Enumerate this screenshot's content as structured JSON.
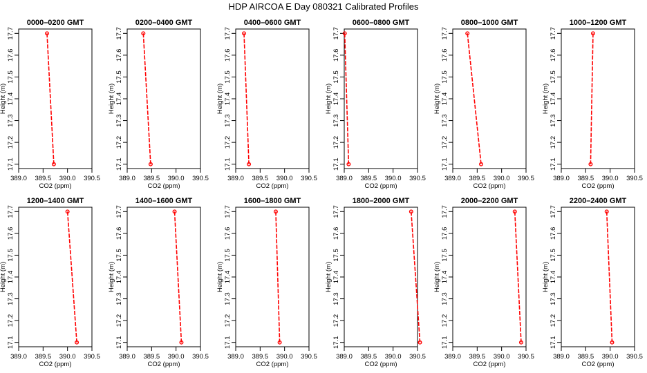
{
  "title": "HDP  AIRCOA E  Day 080321  Calibrated Profiles",
  "colors": {
    "series": "#ff0000",
    "axes": "#000000",
    "background": "#ffffff"
  },
  "chart_data": [
    {
      "type": "line",
      "title": "0000–0200 GMT",
      "xlabel": "CO2 (ppm)",
      "ylabel": "Height (m)",
      "xlim": [
        389.0,
        390.5
      ],
      "ylim": [
        17.08,
        17.72
      ],
      "xticks": [
        "389.0",
        "389.5",
        "390.0",
        "390.5"
      ],
      "yticks": [
        "17.1",
        "17.2",
        "17.3",
        "17.4",
        "17.5",
        "17.6",
        "17.7"
      ],
      "x": [
        389.58,
        389.72
      ],
      "y": [
        17.7,
        17.1
      ]
    },
    {
      "type": "line",
      "title": "0200–0400 GMT",
      "xlabel": "CO2 (ppm)",
      "ylabel": "Height (m)",
      "xlim": [
        389.0,
        390.5
      ],
      "ylim": [
        17.08,
        17.72
      ],
      "xticks": [
        "389.0",
        "389.5",
        "390.0",
        "390.5"
      ],
      "yticks": [
        "17.1",
        "17.2",
        "17.3",
        "17.4",
        "17.5",
        "17.6",
        "17.7"
      ],
      "x": [
        389.33,
        389.48
      ],
      "y": [
        17.7,
        17.1
      ]
    },
    {
      "type": "line",
      "title": "0400–0600 GMT",
      "xlabel": "CO2 (ppm)",
      "ylabel": "Height (m)",
      "xlim": [
        389.0,
        390.5
      ],
      "ylim": [
        17.08,
        17.72
      ],
      "xticks": [
        "389.0",
        "389.5",
        "390.0",
        "390.5"
      ],
      "yticks": [
        "17.1",
        "17.2",
        "17.3",
        "17.4",
        "17.5",
        "17.6",
        "17.7"
      ],
      "x": [
        389.17,
        389.27
      ],
      "y": [
        17.7,
        17.1
      ]
    },
    {
      "type": "line",
      "title": "0600–0800 GMT",
      "xlabel": "CO2 (ppm)",
      "ylabel": "Height (m)",
      "xlim": [
        389.0,
        390.5
      ],
      "ylim": [
        17.08,
        17.72
      ],
      "xticks": [
        "389.0",
        "389.5",
        "390.0",
        "390.5"
      ],
      "yticks": [
        "17.1",
        "17.2",
        "17.3",
        "17.4",
        "17.5",
        "17.6",
        "17.7"
      ],
      "x": [
        389.01,
        389.09
      ],
      "y": [
        17.7,
        17.1
      ]
    },
    {
      "type": "line",
      "title": "0800–1000 GMT",
      "xlabel": "CO2 (ppm)",
      "ylabel": "Height (m)",
      "xlim": [
        389.0,
        390.5
      ],
      "ylim": [
        17.08,
        17.72
      ],
      "xticks": [
        "389.0",
        "389.5",
        "390.0",
        "390.5"
      ],
      "yticks": [
        "17.1",
        "17.2",
        "17.3",
        "17.4",
        "17.5",
        "17.6",
        "17.7"
      ],
      "x": [
        389.3,
        389.58
      ],
      "y": [
        17.7,
        17.1
      ]
    },
    {
      "type": "line",
      "title": "1000–1200 GMT",
      "xlabel": "CO2 (ppm)",
      "ylabel": "Height (m)",
      "xlim": [
        389.0,
        390.5
      ],
      "ylim": [
        17.08,
        17.72
      ],
      "xticks": [
        "389.0",
        "389.5",
        "390.0",
        "390.5"
      ],
      "yticks": [
        "17.1",
        "17.2",
        "17.3",
        "17.4",
        "17.5",
        "17.6",
        "17.7"
      ],
      "x": [
        389.65,
        389.6
      ],
      "y": [
        17.7,
        17.1
      ]
    },
    {
      "type": "line",
      "title": "1200–1400 GMT",
      "xlabel": "CO2 (ppm)",
      "ylabel": "Height (m)",
      "xlim": [
        389.0,
        390.5
      ],
      "ylim": [
        17.08,
        17.72
      ],
      "xticks": [
        "389.0",
        "389.5",
        "390.0",
        "390.5"
      ],
      "yticks": [
        "17.1",
        "17.2",
        "17.3",
        "17.4",
        "17.5",
        "17.6",
        "17.7"
      ],
      "x": [
        390.0,
        390.19
      ],
      "y": [
        17.7,
        17.1
      ]
    },
    {
      "type": "line",
      "title": "1400–1600 GMT",
      "xlabel": "CO2 (ppm)",
      "ylabel": "Height (m)",
      "xlim": [
        389.0,
        390.5
      ],
      "ylim": [
        17.08,
        17.72
      ],
      "xticks": [
        "389.0",
        "389.5",
        "390.0",
        "390.5"
      ],
      "yticks": [
        "17.1",
        "17.2",
        "17.3",
        "17.4",
        "17.5",
        "17.6",
        "17.7"
      ],
      "x": [
        389.97,
        390.11
      ],
      "y": [
        17.7,
        17.1
      ]
    },
    {
      "type": "line",
      "title": "1600–1800 GMT",
      "xlabel": "CO2 (ppm)",
      "ylabel": "Height (m)",
      "xlim": [
        389.0,
        390.5
      ],
      "ylim": [
        17.08,
        17.72
      ],
      "xticks": [
        "389.0",
        "389.5",
        "390.0",
        "390.5"
      ],
      "yticks": [
        "17.1",
        "17.2",
        "17.3",
        "17.4",
        "17.5",
        "17.6",
        "17.7"
      ],
      "x": [
        389.82,
        389.9
      ],
      "y": [
        17.7,
        17.1
      ]
    },
    {
      "type": "line",
      "title": "1800–2000 GMT",
      "xlabel": "CO2 (ppm)",
      "ylabel": "Height (m)",
      "xlim": [
        389.0,
        390.5
      ],
      "ylim": [
        17.08,
        17.72
      ],
      "xticks": [
        "389.0",
        "389.5",
        "390.0",
        "390.5"
      ],
      "yticks": [
        "17.1",
        "17.2",
        "17.3",
        "17.4",
        "17.5",
        "17.6",
        "17.7"
      ],
      "x": [
        390.37,
        390.55
      ],
      "y": [
        17.7,
        17.1
      ]
    },
    {
      "type": "line",
      "title": "2000–2200 GMT",
      "xlabel": "CO2 (ppm)",
      "ylabel": "Height (m)",
      "xlim": [
        389.0,
        390.5
      ],
      "ylim": [
        17.08,
        17.72
      ],
      "xticks": [
        "389.0",
        "389.5",
        "390.0",
        "390.5"
      ],
      "yticks": [
        "17.1",
        "17.2",
        "17.3",
        "17.4",
        "17.5",
        "17.6",
        "17.7"
      ],
      "x": [
        390.27,
        390.4
      ],
      "y": [
        17.7,
        17.1
      ]
    },
    {
      "type": "line",
      "title": "2200–2400 GMT",
      "xlabel": "CO2 (ppm)",
      "ylabel": "Height (m)",
      "xlim": [
        389.0,
        390.5
      ],
      "ylim": [
        17.08,
        17.72
      ],
      "xticks": [
        "389.0",
        "389.5",
        "390.0",
        "390.5"
      ],
      "yticks": [
        "17.1",
        "17.2",
        "17.3",
        "17.4",
        "17.5",
        "17.6",
        "17.7"
      ],
      "x": [
        389.93,
        390.04
      ],
      "y": [
        17.7,
        17.1
      ]
    }
  ]
}
